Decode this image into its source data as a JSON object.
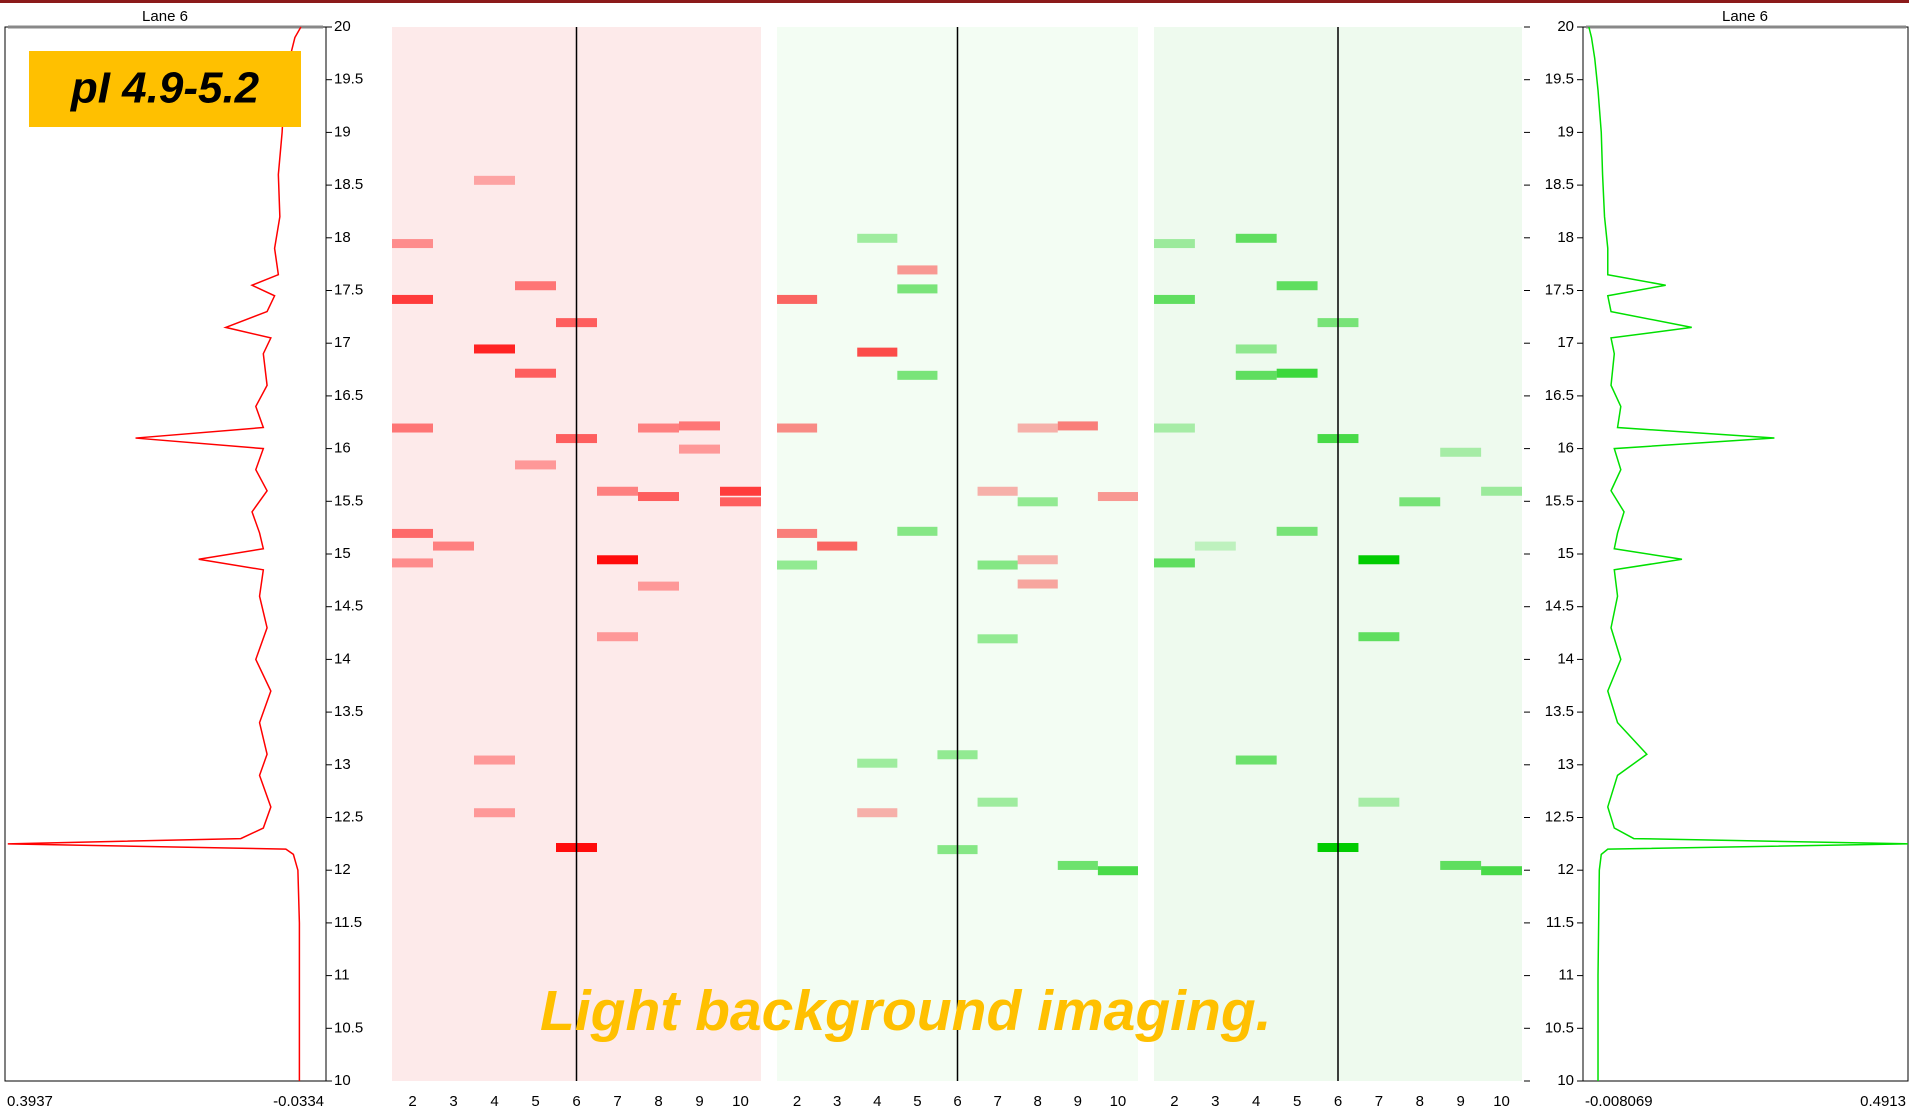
{
  "badge": "pI 4.9-5.2",
  "caption": "Light background imaging.",
  "axis": {
    "ylim": [
      10,
      20
    ],
    "yticks": [
      10,
      10.5,
      11,
      11.5,
      12,
      12.5,
      13,
      13.5,
      14,
      14.5,
      15,
      15.5,
      16,
      16.5,
      17,
      17.5,
      18,
      18.5,
      19,
      19.5,
      20
    ]
  },
  "left_profile": {
    "title": "Lane 6",
    "color": "#ff0000",
    "xlim": [
      0.3937,
      -0.0334
    ],
    "pos": [
      20,
      19.9,
      19.7,
      19.4,
      19.0,
      18.6,
      18.2,
      17.9,
      17.65,
      17.55,
      17.45,
      17.3,
      17.15,
      17.05,
      16.9,
      16.6,
      16.4,
      16.2,
      16.1,
      16.0,
      15.8,
      15.6,
      15.4,
      15.2,
      15.05,
      14.95,
      14.85,
      14.6,
      14.3,
      14.0,
      13.7,
      13.4,
      13.1,
      12.9,
      12.6,
      12.4,
      12.3,
      12.25,
      12.2,
      12.15,
      12.0,
      11.5,
      11.0,
      10.5,
      10.0
    ],
    "intensity": [
      0.0,
      0.008,
      0.015,
      0.022,
      0.025,
      0.03,
      0.028,
      0.035,
      0.03,
      0.065,
      0.035,
      0.045,
      0.1,
      0.04,
      0.05,
      0.045,
      0.06,
      0.05,
      0.22,
      0.05,
      0.06,
      0.045,
      0.065,
      0.055,
      0.05,
      0.136,
      0.05,
      0.055,
      0.045,
      0.06,
      0.04,
      0.055,
      0.045,
      0.055,
      0.04,
      0.05,
      0.08,
      0.39,
      0.02,
      0.01,
      0.004,
      0.002,
      0.002,
      0.002,
      0.002
    ]
  },
  "right_profile": {
    "title": "Lane 6",
    "color": "#00e000",
    "xlim": [
      -0.008069,
      0.4913
    ],
    "pos": [
      20,
      19.9,
      19.7,
      19.4,
      19.0,
      18.6,
      18.2,
      17.9,
      17.65,
      17.55,
      17.45,
      17.3,
      17.15,
      17.05,
      16.9,
      16.6,
      16.4,
      16.2,
      16.1,
      16.0,
      15.8,
      15.6,
      15.4,
      15.2,
      15.05,
      14.95,
      14.85,
      14.6,
      14.3,
      14.0,
      13.7,
      13.4,
      13.1,
      12.9,
      12.6,
      12.4,
      12.3,
      12.25,
      12.2,
      12.15,
      12.0,
      11.5,
      11.0,
      10.5,
      10.0
    ],
    "intensity": [
      0.001,
      0.005,
      0.01,
      0.015,
      0.02,
      0.022,
      0.025,
      0.03,
      0.03,
      0.119,
      0.03,
      0.035,
      0.159,
      0.035,
      0.04,
      0.035,
      0.05,
      0.045,
      0.286,
      0.04,
      0.05,
      0.035,
      0.055,
      0.045,
      0.04,
      0.144,
      0.04,
      0.045,
      0.035,
      0.05,
      0.03,
      0.045,
      0.09,
      0.045,
      0.03,
      0.04,
      0.07,
      0.4913,
      0.03,
      0.02,
      0.017,
      0.016,
      0.015,
      0.015,
      0.015
    ]
  },
  "gels": [
    {
      "lanes": [
        2,
        3,
        4,
        5,
        6,
        7,
        8,
        9,
        10
      ],
      "marker_lane": 6,
      "series": [
        {
          "color": "#ff0000",
          "bands": [
            [
              2,
              17.95,
              0.4
            ],
            [
              2,
              17.42,
              0.75
            ],
            [
              2,
              16.2,
              0.5
            ],
            [
              2,
              15.2,
              0.55
            ],
            [
              2,
              14.92,
              0.4
            ],
            [
              3,
              15.08,
              0.45
            ],
            [
              4,
              18.55,
              0.3
            ],
            [
              4,
              16.95,
              0.85
            ],
            [
              4,
              13.05,
              0.35
            ],
            [
              4,
              12.55,
              0.35
            ],
            [
              5,
              17.55,
              0.5
            ],
            [
              5,
              16.72,
              0.6
            ],
            [
              5,
              15.85,
              0.35
            ],
            [
              6,
              17.2,
              0.6
            ],
            [
              6,
              16.1,
              0.6
            ],
            [
              6,
              12.22,
              0.95
            ],
            [
              7,
              15.6,
              0.45
            ],
            [
              7,
              14.95,
              0.95
            ],
            [
              7,
              14.22,
              0.35
            ],
            [
              8,
              15.55,
              0.6
            ],
            [
              8,
              16.2,
              0.45
            ],
            [
              8,
              14.7,
              0.35
            ],
            [
              9,
              16.22,
              0.5
            ],
            [
              9,
              16.0,
              0.35
            ],
            [
              10,
              15.6,
              0.75
            ],
            [
              10,
              15.5,
              0.6
            ]
          ]
        }
      ]
    },
    {
      "lanes": [
        2,
        3,
        4,
        5,
        6,
        7,
        8,
        9,
        10
      ],
      "marker_lane": 6,
      "series": [
        {
          "color": "#00cc00",
          "bands": [
            [
              2,
              14.9,
              0.4
            ],
            [
              5,
              17.52,
              0.5
            ],
            [
              5,
              15.22,
              0.45
            ],
            [
              5,
              16.7,
              0.5
            ],
            [
              6,
              13.1,
              0.4
            ],
            [
              6,
              12.2,
              0.45
            ],
            [
              7,
              14.9,
              0.45
            ],
            [
              7,
              14.2,
              0.4
            ],
            [
              7,
              12.65,
              0.35
            ],
            [
              8,
              15.5,
              0.4
            ],
            [
              9,
              12.05,
              0.55
            ],
            [
              10,
              12.0,
              0.7
            ],
            [
              4,
              18.0,
              0.35
            ],
            [
              4,
              13.02,
              0.35
            ]
          ]
        },
        {
          "color": "#ff0000",
          "bands": [
            [
              2,
              17.42,
              0.6
            ],
            [
              2,
              16.2,
              0.45
            ],
            [
              2,
              15.2,
              0.5
            ],
            [
              3,
              15.08,
              0.6
            ],
            [
              4,
              16.92,
              0.7
            ],
            [
              4,
              12.55,
              0.3
            ],
            [
              5,
              17.7,
              0.4
            ],
            [
              7,
              15.6,
              0.3
            ],
            [
              8,
              16.2,
              0.3
            ],
            [
              8,
              14.95,
              0.3
            ],
            [
              8,
              14.72,
              0.35
            ],
            [
              9,
              16.22,
              0.5
            ],
            [
              10,
              15.55,
              0.4
            ]
          ]
        }
      ]
    },
    {
      "lanes": [
        2,
        3,
        4,
        5,
        6,
        7,
        8,
        9,
        10
      ],
      "marker_lane": 6,
      "series": [
        {
          "color": "#00cc00",
          "bands": [
            [
              2,
              17.95,
              0.35
            ],
            [
              2,
              17.42,
              0.6
            ],
            [
              2,
              14.92,
              0.6
            ],
            [
              2,
              16.2,
              0.3
            ],
            [
              3,
              15.08,
              0.2
            ],
            [
              4,
              18.0,
              0.6
            ],
            [
              4,
              16.7,
              0.6
            ],
            [
              4,
              16.95,
              0.4
            ],
            [
              4,
              13.05,
              0.55
            ],
            [
              5,
              17.55,
              0.6
            ],
            [
              5,
              16.72,
              0.75
            ],
            [
              5,
              15.22,
              0.5
            ],
            [
              6,
              17.2,
              0.5
            ],
            [
              6,
              16.1,
              0.7
            ],
            [
              6,
              12.22,
              1.0
            ],
            [
              7,
              14.95,
              1.0
            ],
            [
              7,
              14.22,
              0.6
            ],
            [
              7,
              12.65,
              0.3
            ],
            [
              8,
              15.5,
              0.5
            ],
            [
              9,
              15.97,
              0.3
            ],
            [
              9,
              12.05,
              0.6
            ],
            [
              10,
              12.0,
              0.7
            ],
            [
              10,
              15.6,
              0.35
            ]
          ]
        }
      ]
    }
  ]
}
